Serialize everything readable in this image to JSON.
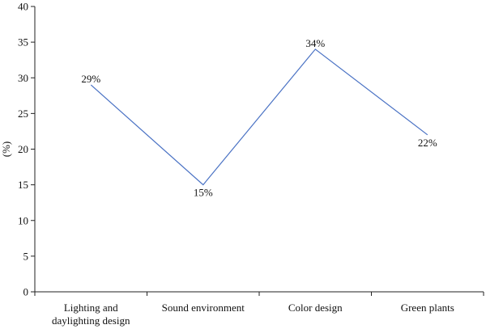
{
  "chart_data": {
    "type": "line",
    "categories": [
      "Lighting and\ndaylighting design",
      "Sound environment",
      "Color design",
      "Green plants"
    ],
    "series": [
      {
        "values": [
          29,
          15,
          34,
          22
        ]
      }
    ],
    "data_labels": [
      "29%",
      "15%",
      "34%",
      "22%"
    ],
    "title": "",
    "xlabel": "",
    "ylabel": "(%)",
    "ylim": [
      0,
      40
    ],
    "yticks": [
      0,
      5,
      10,
      15,
      20,
      25,
      30,
      35,
      40
    ],
    "grid": false,
    "line_color": "#4a72c4"
  }
}
